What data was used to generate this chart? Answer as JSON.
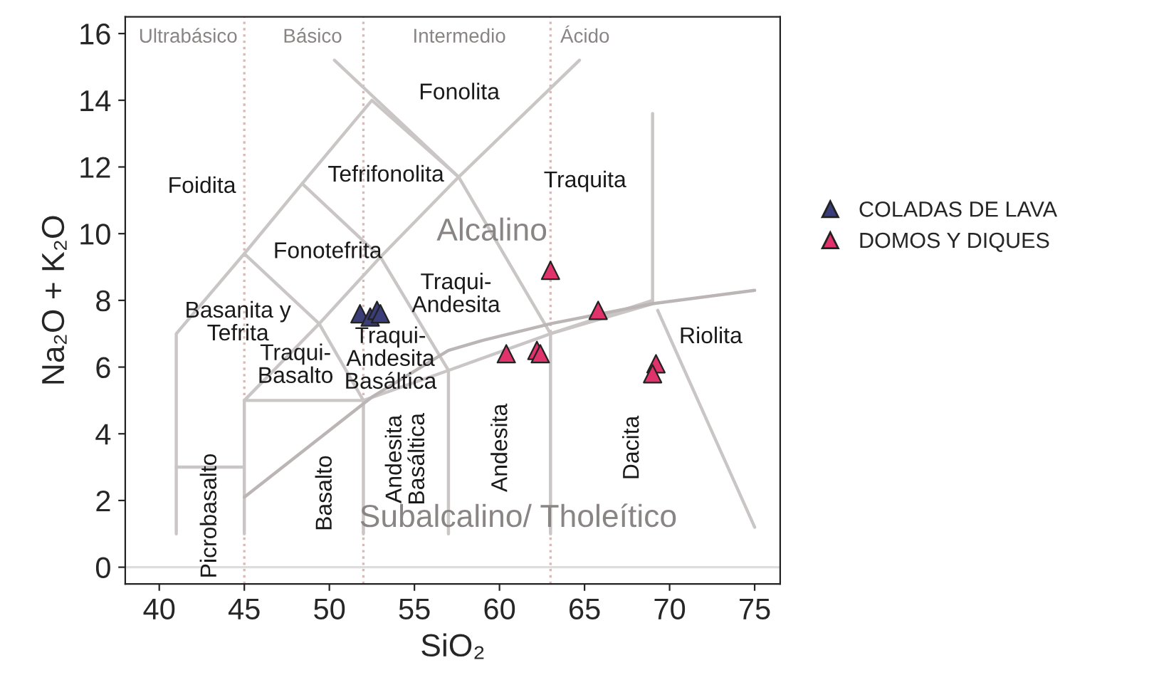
{
  "chart_data": {
    "type": "scatter",
    "xlabel": "SiO₂",
    "ylabel": "Na₂O + K₂O",
    "xlim": [
      38,
      76.5
    ],
    "ylim": [
      -0.5,
      16.5
    ],
    "xticks": [
      40,
      45,
      50,
      55,
      60,
      65,
      70,
      75
    ],
    "yticks": [
      0,
      2,
      4,
      6,
      8,
      10,
      12,
      14,
      16
    ],
    "grid": false,
    "legend": "right",
    "marker": "triangle",
    "series": [
      {
        "type": "line",
        "marker": "none",
        "color": "#cbc6c6",
        "x": [
          41,
          41,
          45,
          48.4,
          52.5,
          57.6,
          63,
          69
        ],
        "values": [
          1,
          7,
          9.4,
          11.5,
          14,
          11.7,
          7,
          7.9
        ]
      },
      {
        "type": "line",
        "marker": "none",
        "color": "#cbc6c6",
        "x": [
          41,
          45
        ],
        "values": [
          3,
          3
        ]
      },
      {
        "type": "line",
        "marker": "none",
        "color": "#cbc6c6",
        "x": [
          45,
          45,
          52,
          52
        ],
        "values": [
          1,
          5,
          5,
          1
        ]
      },
      {
        "type": "line",
        "marker": "none",
        "color": "#cbc6c6",
        "x": [
          45,
          49.4,
          53,
          57.6,
          64.7
        ],
        "values": [
          5,
          7.3,
          9.3,
          11.7,
          15.2
        ]
      },
      {
        "type": "line",
        "marker": "none",
        "color": "#cbc6c6",
        "x": [
          45,
          49.4,
          52
        ],
        "values": [
          9.4,
          7.3,
          5
        ]
      },
      {
        "type": "line",
        "marker": "none",
        "color": "#cbc6c6",
        "x": [
          48.4,
          53,
          57,
          57
        ],
        "values": [
          11.5,
          9.3,
          5.9,
          1
        ]
      },
      {
        "type": "line",
        "marker": "none",
        "color": "#cbc6c6",
        "x": [
          50.3,
          57.6
        ],
        "values": [
          15.2,
          11.7
        ]
      },
      {
        "type": "line",
        "marker": "none",
        "color": "#cbc6c6",
        "x": [
          52,
          57,
          63,
          69
        ],
        "values": [
          5,
          5.9,
          7,
          8
        ]
      },
      {
        "type": "line",
        "marker": "none",
        "color": "#cbc6c6",
        "x": [
          63,
          63
        ],
        "values": [
          7,
          1
        ]
      },
      {
        "type": "line",
        "marker": "none",
        "color": "#cbc6c6",
        "x": [
          69,
          69
        ],
        "values": [
          7.9,
          13.6
        ]
      },
      {
        "type": "line",
        "marker": "none",
        "color": "#cbc6c6",
        "x": [
          69.3,
          75
        ],
        "values": [
          7.7,
          1.2
        ]
      },
      {
        "type": "line",
        "marker": "none",
        "color": "#bbb5b5",
        "x": [
          45,
          52.5,
          57,
          59,
          63,
          69,
          75
        ],
        "values": [
          2.1,
          5.1,
          6.5,
          6.8,
          7.3,
          7.9,
          8.3
        ]
      },
      {
        "name": "COLADAS DE LAVA",
        "color": "#3b3d78",
        "x": [
          51.8,
          52.4,
          52.8,
          53.0
        ],
        "values": [
          7.6,
          7.5,
          7.7,
          7.6
        ]
      },
      {
        "name": "DOMOS Y DIQUES",
        "color": "#e0336b",
        "x": [
          63.0,
          65.8,
          60.4,
          62.2,
          62.4,
          69.2,
          69.0
        ],
        "values": [
          8.9,
          7.7,
          6.4,
          6.5,
          6.4,
          6.1,
          5.8
        ]
      }
    ],
    "ref_lines": [
      {
        "axis": "x",
        "value": 45,
        "color": "#d9b8b8",
        "line_style": "dotted"
      },
      {
        "axis": "x",
        "value": 52,
        "color": "#d9b8b8",
        "line_style": "dotted"
      },
      {
        "axis": "x",
        "value": 63,
        "color": "#d9b8b8",
        "line_style": "dotted"
      },
      {
        "axis": "y",
        "value": 0,
        "color": "#dddddd",
        "line_style": "solid"
      }
    ],
    "annotations": [
      "Ultrabásico",
      "Básico",
      "Intermedio",
      "Ácido",
      "Fonolita",
      "Tefrifonolita",
      "Foidita",
      "Traquita",
      "Alcalino",
      "Fonotefrita",
      "Traqui-\nAndesita",
      "Basanita y\nTefrita",
      "Traqui-\nAndesita\nBasáltica",
      "Traqui-\nBasalto",
      "Riolita",
      "Subalcalino/ Tholeítico",
      "Picrobasalto",
      "Basalto",
      "Andesita\nBasáltica",
      "Andesita",
      "Dacita"
    ]
  }
}
